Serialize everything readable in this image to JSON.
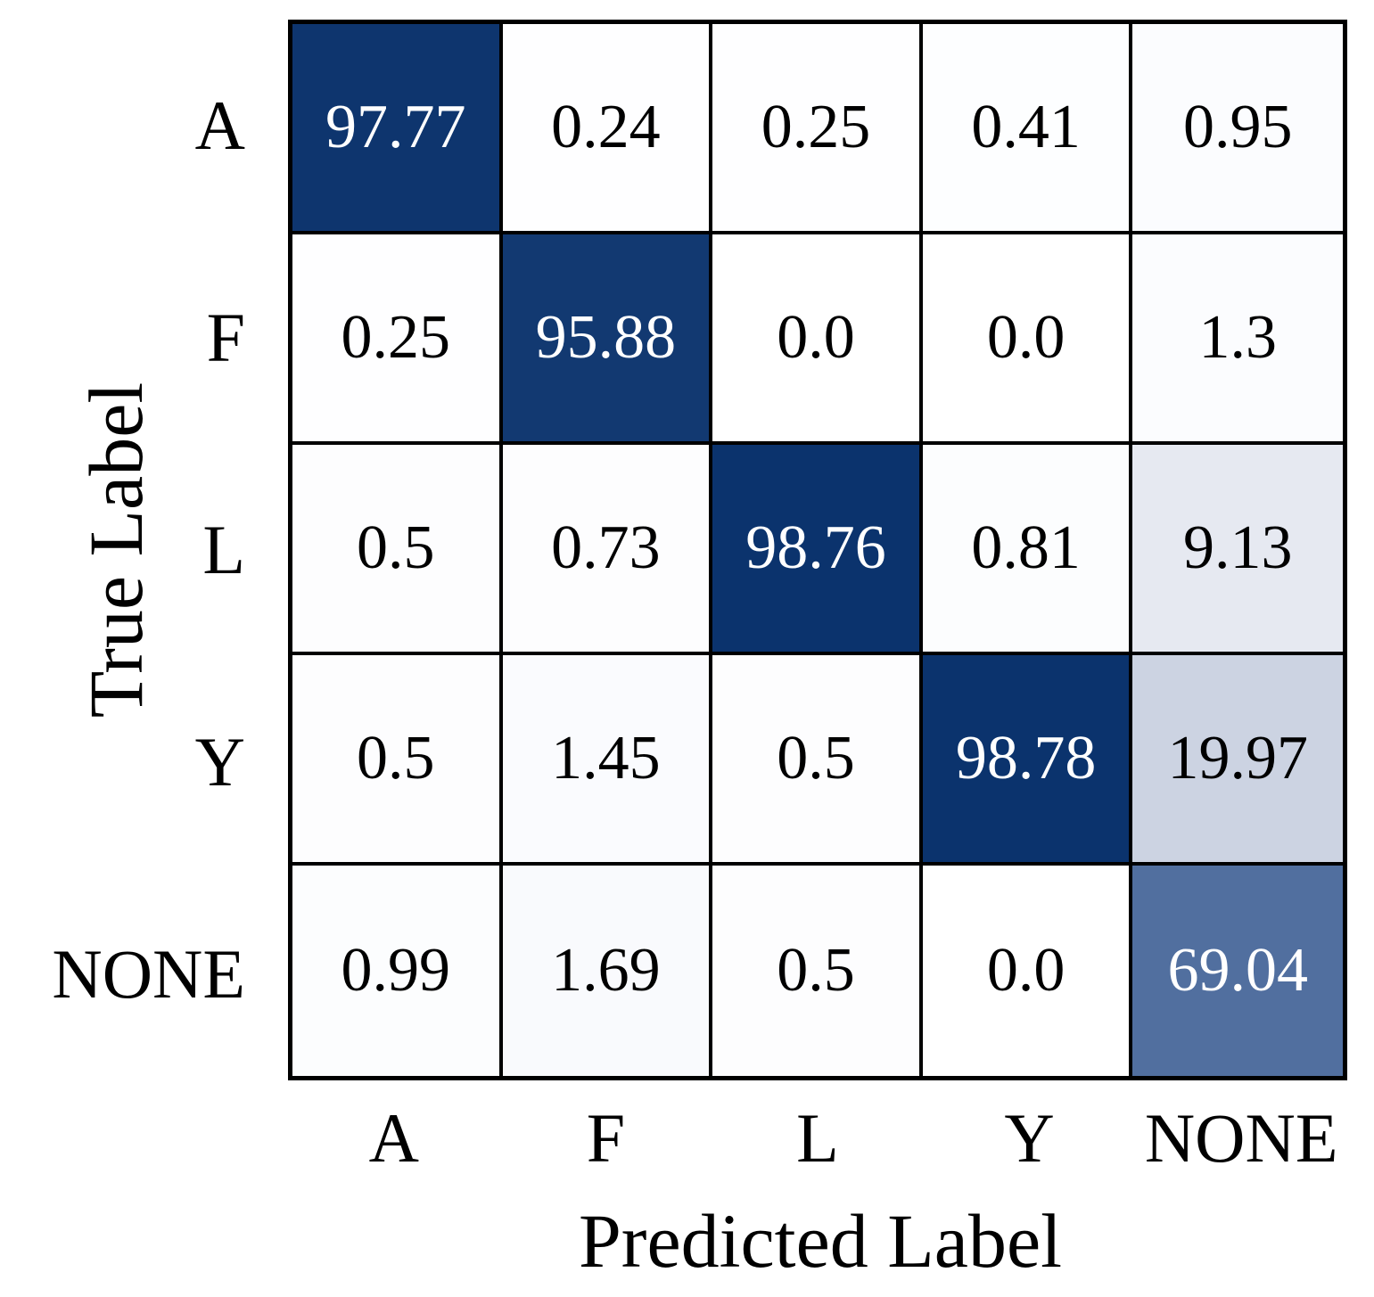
{
  "figure": {
    "background_color": "#ffffff",
    "grid_line_color": "#000000",
    "outer_border_color": "#000000"
  },
  "chart_data": {
    "type": "heatmap",
    "title": "",
    "xlabel": "Predicted Label",
    "ylabel": "True Label",
    "categories_x": [
      "A",
      "F",
      "L",
      "Y",
      "NONE"
    ],
    "categories_y": [
      "A",
      "F",
      "L",
      "Y",
      "NONE"
    ],
    "values": [
      [
        97.77,
        0.24,
        0.25,
        0.41,
        0.95
      ],
      [
        0.25,
        95.88,
        0.0,
        0.0,
        1.3
      ],
      [
        0.5,
        0.73,
        98.76,
        0.81,
        9.13
      ],
      [
        0.5,
        1.45,
        0.5,
        98.78,
        19.97
      ],
      [
        0.99,
        1.69,
        0.5,
        0.0,
        69.04
      ]
    ],
    "value_labels": [
      [
        "97.77",
        "0.24",
        "0.25",
        "0.41",
        "0.95"
      ],
      [
        "0.25",
        "95.88",
        "0.0",
        "0.0",
        "1.3"
      ],
      [
        "0.5",
        "0.73",
        "98.76",
        "0.81",
        "9.13"
      ],
      [
        "0.5",
        "1.45",
        "0.5",
        "98.78",
        "19.97"
      ],
      [
        "0.99",
        "1.69",
        "0.5",
        "0.0",
        "69.04"
      ]
    ],
    "cell_colors": [
      [
        "#0e356e",
        "#fefeff",
        "#fefeff",
        "#fdfeff",
        "#fbfcfe"
      ],
      [
        "#fefeff",
        "#123971",
        "#ffffff",
        "#ffffff",
        "#fbfcfe"
      ],
      [
        "#fdfdfe",
        "#fdfdfe",
        "#0b336d",
        "#fcfdfe",
        "#e6e9f1"
      ],
      [
        "#fdfdfe",
        "#fafbfe",
        "#fdfdfe",
        "#0b336d",
        "#ccd3e2"
      ],
      [
        "#fcfdfe",
        "#f9fafd",
        "#fdfdfe",
        "#ffffff",
        "#516f9f"
      ]
    ],
    "text_colors": [
      [
        "#ffffff",
        "#000000",
        "#000000",
        "#000000",
        "#000000"
      ],
      [
        "#000000",
        "#ffffff",
        "#000000",
        "#000000",
        "#000000"
      ],
      [
        "#000000",
        "#000000",
        "#ffffff",
        "#000000",
        "#000000"
      ],
      [
        "#000000",
        "#000000",
        "#000000",
        "#ffffff",
        "#000000"
      ],
      [
        "#000000",
        "#000000",
        "#000000",
        "#000000",
        "#ffffff"
      ]
    ],
    "colormap": {
      "low": "#ffffff",
      "high": "#08306b",
      "value_range": [
        0,
        100
      ]
    },
    "legend": "none",
    "grid": "on"
  }
}
